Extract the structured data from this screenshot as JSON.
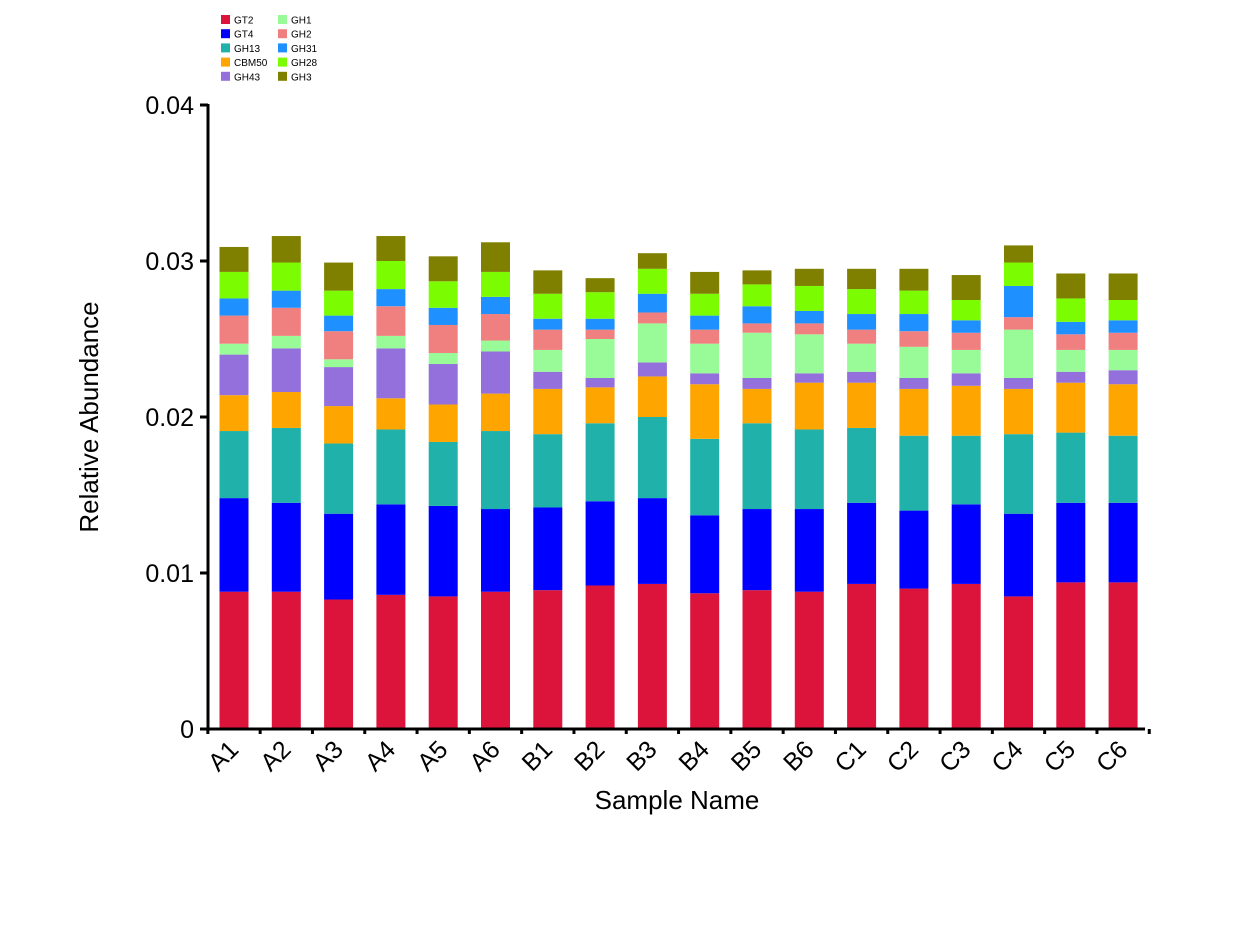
{
  "chart_data": {
    "type": "bar",
    "stacked": true,
    "title": "",
    "xlabel": "Sample Name",
    "ylabel": "Relative Abundance",
    "ylim": [
      0,
      0.04
    ],
    "yticks": [
      0,
      0.01,
      0.02,
      0.03,
      0.04
    ],
    "ytick_labels": [
      "0",
      "0.01",
      "0.02",
      "0.03",
      "0.04"
    ],
    "grid": false,
    "legend_position": "top-left",
    "categories": [
      "A1",
      "A2",
      "A3",
      "A4",
      "A5",
      "A6",
      "B1",
      "B2",
      "B3",
      "B4",
      "B5",
      "B6",
      "C1",
      "C2",
      "C3",
      "C4",
      "C5",
      "C6"
    ],
    "series": [
      {
        "name": "GT2",
        "color": "#DC143C",
        "values": [
          0.0088,
          0.0088,
          0.0083,
          0.0086,
          0.0085,
          0.0088,
          0.0089,
          0.0092,
          0.0093,
          0.0087,
          0.0089,
          0.0088,
          0.0093,
          0.009,
          0.0093,
          0.0085,
          0.0094,
          0.0094
        ]
      },
      {
        "name": "GT4",
        "color": "#0000FF",
        "values": [
          0.006,
          0.0057,
          0.0055,
          0.0058,
          0.0058,
          0.0053,
          0.0053,
          0.0054,
          0.0055,
          0.005,
          0.0052,
          0.0053,
          0.0052,
          0.005,
          0.0051,
          0.0053,
          0.0051,
          0.0051
        ]
      },
      {
        "name": "GH13",
        "color": "#20B2AA",
        "values": [
          0.0043,
          0.0048,
          0.0045,
          0.0048,
          0.0041,
          0.005,
          0.0047,
          0.005,
          0.0052,
          0.0049,
          0.0055,
          0.0051,
          0.0048,
          0.0048,
          0.0044,
          0.0051,
          0.0045,
          0.0043
        ]
      },
      {
        "name": "CBM50",
        "color": "#FFA500",
        "values": [
          0.0023,
          0.0023,
          0.0024,
          0.002,
          0.0024,
          0.0024,
          0.0029,
          0.0023,
          0.0026,
          0.0035,
          0.0022,
          0.003,
          0.0029,
          0.003,
          0.0032,
          0.0029,
          0.0032,
          0.0033
        ]
      },
      {
        "name": "GH43",
        "color": "#9370DB",
        "values": [
          0.0026,
          0.0028,
          0.0025,
          0.0032,
          0.0026,
          0.0027,
          0.0011,
          0.0006,
          0.0009,
          0.0007,
          0.0007,
          0.0006,
          0.0007,
          0.0007,
          0.0008,
          0.0007,
          0.0007,
          0.0009
        ]
      },
      {
        "name": "GH1",
        "color": "#98FB98",
        "values": [
          0.0007,
          0.0008,
          0.0005,
          0.0008,
          0.0007,
          0.0007,
          0.0014,
          0.0025,
          0.0025,
          0.0019,
          0.0029,
          0.0025,
          0.0018,
          0.002,
          0.0015,
          0.0031,
          0.0014,
          0.0013
        ]
      },
      {
        "name": "GH2",
        "color": "#F08080",
        "values": [
          0.0018,
          0.0018,
          0.0018,
          0.0019,
          0.0018,
          0.0017,
          0.0013,
          0.0006,
          0.0007,
          0.0009,
          0.0006,
          0.0007,
          0.0009,
          0.001,
          0.0011,
          0.0008,
          0.001,
          0.0011
        ]
      },
      {
        "name": "GH31",
        "color": "#1E90FF",
        "values": [
          0.0011,
          0.0011,
          0.001,
          0.0011,
          0.0011,
          0.0011,
          0.0007,
          0.0007,
          0.0012,
          0.0009,
          0.0011,
          0.0008,
          0.001,
          0.0011,
          0.0008,
          0.002,
          0.0008,
          0.0008
        ]
      },
      {
        "name": "GH28",
        "color": "#7CFC00",
        "values": [
          0.0017,
          0.0018,
          0.0016,
          0.0018,
          0.0017,
          0.0016,
          0.0016,
          0.0017,
          0.0016,
          0.0014,
          0.0014,
          0.0016,
          0.0016,
          0.0015,
          0.0013,
          0.0015,
          0.0015,
          0.0013
        ]
      },
      {
        "name": "GH3",
        "color": "#808000",
        "values": [
          0.0016,
          0.0017,
          0.0018,
          0.0016,
          0.0016,
          0.0019,
          0.0015,
          0.0009,
          0.001,
          0.0014,
          0.0009,
          0.0011,
          0.0013,
          0.0014,
          0.0016,
          0.0011,
          0.0016,
          0.0017
        ]
      }
    ]
  }
}
